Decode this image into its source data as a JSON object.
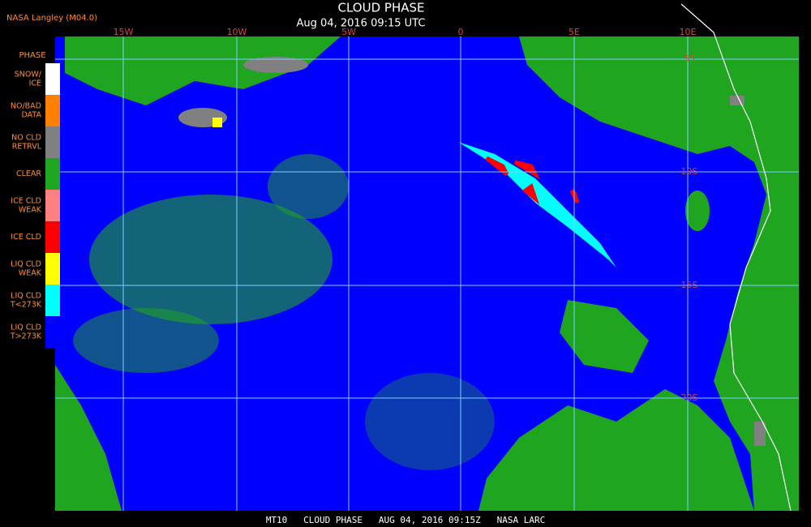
{
  "header": {
    "title": "CLOUD PHASE",
    "subtitle": "Aug 04, 2016 09:15 UTC",
    "source": "NASA Langley (M04.0)"
  },
  "longitudes": [
    "15W",
    "10W",
    "5W",
    "0",
    "5E",
    "10E"
  ],
  "latitudes": [
    "5S",
    "10S",
    "15S",
    "20S"
  ],
  "legend": {
    "title": "PHASE",
    "items": [
      {
        "lines": [
          "SNOW/",
          "ICE"
        ],
        "color": "#ffffff"
      },
      {
        "lines": [
          "NO/BAD",
          "DATA"
        ],
        "color": "#ff8000"
      },
      {
        "lines": [
          "NO CLD",
          "RETRVL"
        ],
        "color": "#808080"
      },
      {
        "lines": [
          "CLEAR"
        ],
        "color": "#1fa51f"
      },
      {
        "lines": [
          "ICE CLD",
          "WEAK"
        ],
        "color": "#ff8080"
      },
      {
        "lines": [
          "ICE CLD"
        ],
        "color": "#ff0000"
      },
      {
        "lines": [
          "LIQ CLD",
          "WEAK"
        ],
        "color": "#ffff00"
      },
      {
        "lines": [
          "LIQ CLD",
          "T<273K"
        ],
        "color": "#00ffff"
      },
      {
        "lines": [
          "LIQ CLD",
          "T>273K"
        ],
        "color": "#0000ff"
      }
    ]
  },
  "footer": "MT10   CLOUD PHASE   AUG 04, 2016 09:15Z   NASA LARC"
}
